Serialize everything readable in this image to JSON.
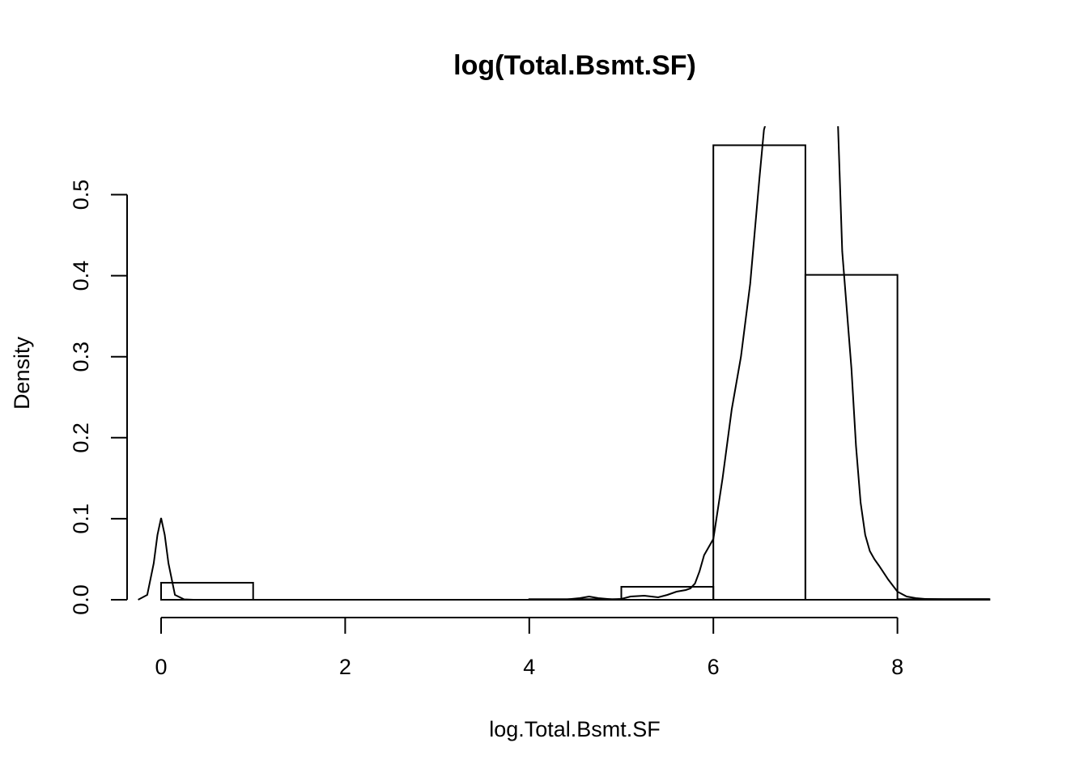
{
  "chart_data": {
    "type": "bar",
    "title": "log(Total.Bsmt.SF)",
    "xlabel": "log.Total.Bsmt.SF",
    "ylabel": "Density",
    "xlim": [
      0,
      9
    ],
    "ylim": [
      0,
      0.55
    ],
    "x_ticks": [
      {
        "value": 0,
        "label": "0"
      },
      {
        "value": 2,
        "label": "2"
      },
      {
        "value": 4,
        "label": "4"
      },
      {
        "value": 6,
        "label": "6"
      },
      {
        "value": 8,
        "label": "8"
      }
    ],
    "y_ticks": [
      {
        "value": 0.0,
        "label": "0.0"
      },
      {
        "value": 0.1,
        "label": "0.1"
      },
      {
        "value": 0.2,
        "label": "0.2"
      },
      {
        "value": 0.3,
        "label": "0.3"
      },
      {
        "value": 0.4,
        "label": "0.4"
      },
      {
        "value": 0.5,
        "label": "0.5"
      }
    ],
    "bins": [
      {
        "x0": 0,
        "x1": 1,
        "density": 0.021
      },
      {
        "x0": 1,
        "x1": 2,
        "density": 0.0
      },
      {
        "x0": 2,
        "x1": 3,
        "density": 0.0
      },
      {
        "x0": 3,
        "x1": 4,
        "density": 0.0
      },
      {
        "x0": 4,
        "x1": 5,
        "density": 0.0007
      },
      {
        "x0": 5,
        "x1": 6,
        "density": 0.016
      },
      {
        "x0": 6,
        "x1": 7,
        "density": 0.561
      },
      {
        "x0": 7,
        "x1": 8,
        "density": 0.401
      },
      {
        "x0": 8,
        "x1": 9,
        "density": 0.0007
      }
    ],
    "density_curve": {
      "x": [
        -0.25,
        -0.15,
        -0.08,
        -0.04,
        0.0,
        0.04,
        0.08,
        0.15,
        0.25,
        0.35,
        0.5,
        1.0,
        2.0,
        3.0,
        4.0,
        4.4,
        4.55,
        4.65,
        4.75,
        4.9,
        5.0,
        5.1,
        5.25,
        5.4,
        5.5,
        5.6,
        5.7,
        5.75,
        5.8,
        5.85,
        5.9,
        6.0,
        6.1,
        6.2,
        6.3,
        6.4,
        6.5,
        6.55,
        6.6,
        6.65,
        7.3,
        7.35,
        7.4,
        7.5,
        7.55,
        7.6,
        7.65,
        7.7,
        7.75,
        7.8,
        7.9,
        8.0,
        8.1,
        8.2,
        8.3,
        8.5,
        9.0
      ],
      "y": [
        0.0,
        0.006,
        0.045,
        0.08,
        0.101,
        0.08,
        0.045,
        0.006,
        0.0005,
        0.0,
        0.0,
        0.0,
        0.0,
        0.0,
        0.0,
        0.0004,
        0.002,
        0.004,
        0.002,
        0.0005,
        0.001,
        0.004,
        0.005,
        0.003,
        0.006,
        0.01,
        0.012,
        0.014,
        0.02,
        0.035,
        0.055,
        0.075,
        0.15,
        0.235,
        0.3,
        0.39,
        0.52,
        0.58,
        0.6,
        0.6,
        0.6,
        0.6,
        0.43,
        0.285,
        0.19,
        0.12,
        0.08,
        0.06,
        0.05,
        0.042,
        0.025,
        0.01,
        0.004,
        0.002,
        0.001,
        0.0007,
        0.0007
      ]
    },
    "grid": false,
    "legend": "none"
  }
}
